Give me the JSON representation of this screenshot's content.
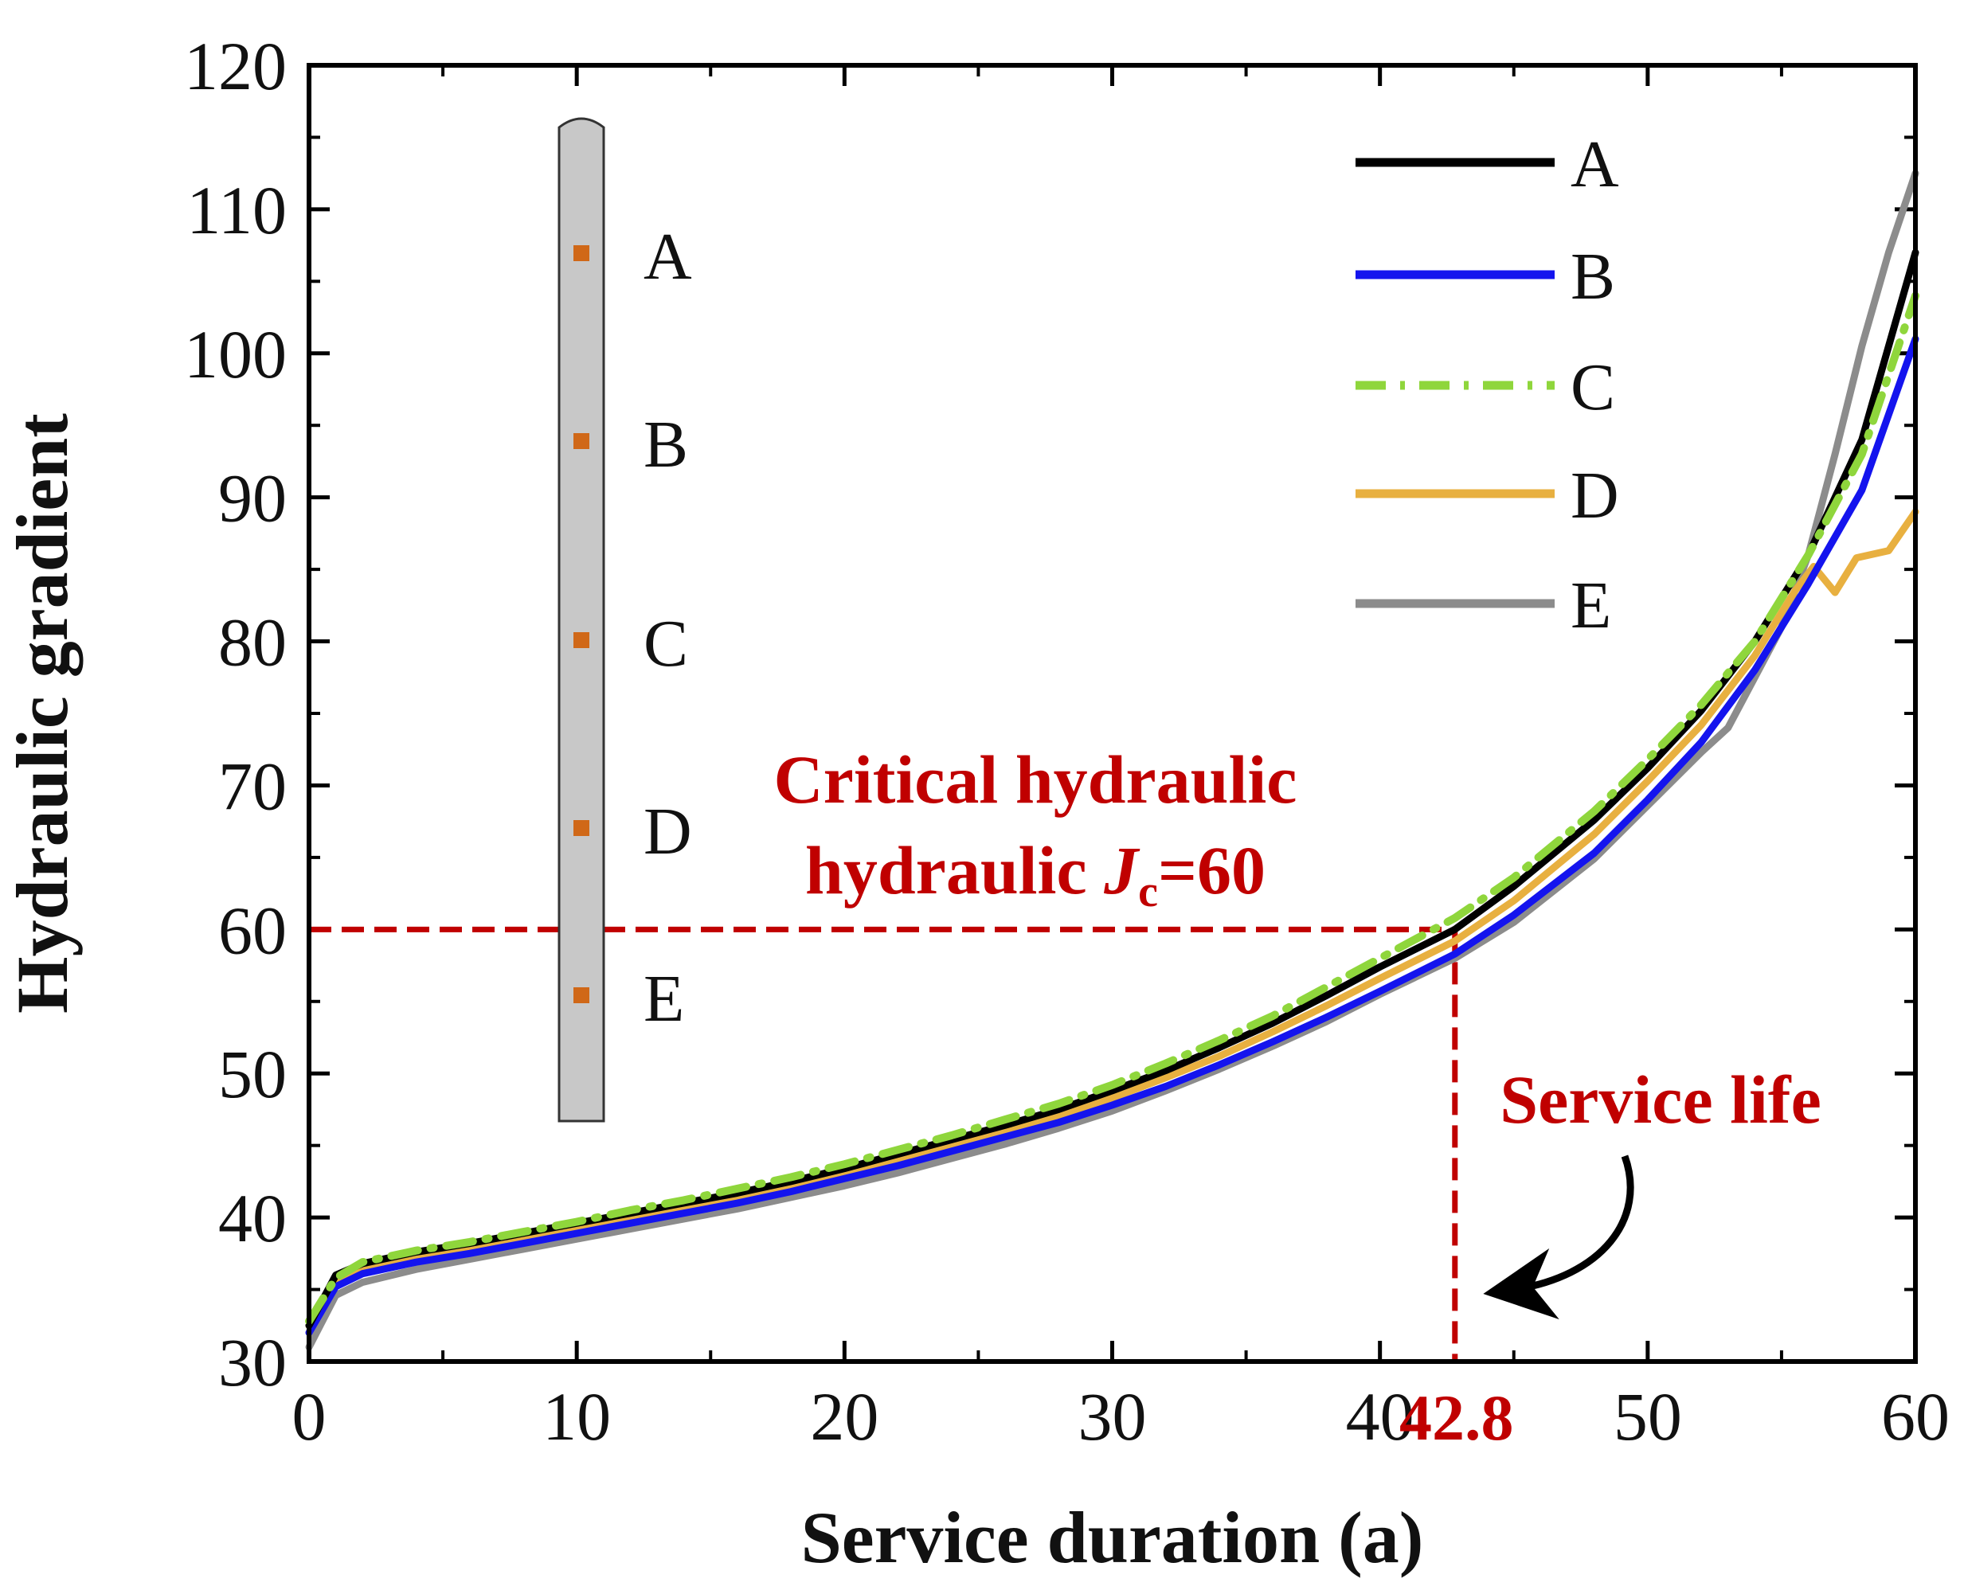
{
  "colors": {
    "A": "#000000",
    "B": "#1414ee",
    "C": "#8fd63c",
    "D": "#e8b040",
    "E": "#8c8c8c",
    "annotation": "#c00000",
    "pile_fill": "#c8c8c8",
    "pile_marker": "#d06818"
  },
  "chart_data": {
    "type": "line",
    "title": "",
    "xlabel": "Service duration (a)",
    "ylabel": "Hydraulic gradient",
    "xlim": [
      0,
      60
    ],
    "ylim": [
      30,
      120
    ],
    "x_ticks": [
      0,
      10,
      20,
      30,
      40,
      50,
      60
    ],
    "y_ticks": [
      30,
      40,
      50,
      60,
      70,
      80,
      90,
      100,
      110,
      120
    ],
    "x_tick_labels": [
      "0",
      "10",
      "20",
      "30",
      "40",
      "50",
      "60"
    ],
    "y_tick_labels": [
      "30",
      "40",
      "50",
      "60",
      "70",
      "80",
      "90",
      "100",
      "110",
      "120"
    ],
    "legend_position": "top-right",
    "series": [
      {
        "name": "A",
        "style": "solid",
        "x": [
          0,
          1,
          2,
          4,
          6,
          8,
          10,
          12,
          14,
          16,
          18,
          20,
          22,
          24,
          26,
          28,
          30,
          32,
          34,
          36,
          38,
          40,
          42.8,
          45,
          48,
          50,
          52,
          54,
          56,
          58,
          60
        ],
        "y": [
          32.5,
          36.0,
          36.8,
          37.6,
          38.2,
          38.9,
          39.6,
          40.3,
          41.0,
          41.7,
          42.5,
          43.4,
          44.4,
          45.4,
          46.4,
          47.5,
          48.8,
          50.2,
          51.8,
          53.5,
          55.4,
          57.4,
          60.0,
          63.0,
          67.6,
          71.2,
          75.2,
          80.0,
          86.0,
          94.0,
          107.0
        ]
      },
      {
        "name": "B",
        "style": "solid",
        "x": [
          0,
          1,
          2,
          4,
          6,
          8,
          10,
          12,
          14,
          16,
          18,
          20,
          22,
          24,
          26,
          28,
          30,
          32,
          34,
          36,
          38,
          40,
          42.8,
          45,
          48,
          50,
          52,
          54,
          56,
          58,
          60
        ],
        "y": [
          32.0,
          35.2,
          36.1,
          36.9,
          37.5,
          38.2,
          38.9,
          39.6,
          40.3,
          41.0,
          41.8,
          42.7,
          43.6,
          44.6,
          45.6,
          46.6,
          47.8,
          49.1,
          50.6,
          52.2,
          53.9,
          55.7,
          58.3,
          61.0,
          65.3,
          69.0,
          73.0,
          78.0,
          84.0,
          90.5,
          101.0
        ]
      },
      {
        "name": "C",
        "style": "dashdot",
        "x": [
          0,
          1,
          2,
          4,
          6,
          8,
          10,
          12,
          14,
          16,
          18,
          20,
          22,
          24,
          26,
          28,
          30,
          32,
          34,
          36,
          38,
          40,
          42.8,
          45,
          48,
          50,
          52,
          54,
          56,
          58,
          60
        ],
        "y": [
          32.8,
          35.8,
          36.9,
          37.7,
          38.3,
          39.0,
          39.7,
          40.5,
          41.2,
          42.0,
          42.8,
          43.7,
          44.7,
          45.7,
          46.8,
          47.9,
          49.2,
          50.7,
          52.3,
          54.0,
          56.0,
          58.0,
          60.8,
          63.6,
          68.2,
          71.8,
          75.6,
          80.0,
          86.0,
          93.0,
          104.0
        ]
      },
      {
        "name": "D",
        "style": "solid",
        "x": [
          0,
          1,
          2,
          4,
          6,
          8,
          10,
          12,
          14,
          16,
          18,
          20,
          22,
          24,
          26,
          28,
          30,
          32,
          34,
          36,
          38,
          40,
          42.8,
          45,
          48,
          50,
          52,
          54,
          55.5,
          56.2,
          57,
          57.8,
          59,
          60
        ],
        "y": [
          32.5,
          35.4,
          36.4,
          37.2,
          37.8,
          38.5,
          39.2,
          39.9,
          40.6,
          41.4,
          42.2,
          43.0,
          44.0,
          45.0,
          46.0,
          47.0,
          48.3,
          49.7,
          51.2,
          52.9,
          54.7,
          56.6,
          59.2,
          62.0,
          66.6,
          70.3,
          74.2,
          79.0,
          83.5,
          85.2,
          83.4,
          85.8,
          86.3,
          89.0
        ]
      },
      {
        "name": "E",
        "style": "solid",
        "x": [
          0,
          1,
          2,
          4,
          6,
          8,
          10,
          12,
          14,
          16,
          18,
          20,
          22,
          24,
          26,
          28,
          30,
          32,
          34,
          36,
          38,
          40,
          42.8,
          45,
          48,
          50,
          52,
          53,
          55,
          56,
          57,
          58,
          59,
          60
        ],
        "y": [
          31.0,
          34.6,
          35.5,
          36.4,
          37.1,
          37.8,
          38.5,
          39.2,
          39.9,
          40.6,
          41.4,
          42.2,
          43.1,
          44.1,
          45.1,
          46.2,
          47.4,
          48.8,
          50.3,
          51.9,
          53.6,
          55.5,
          58.0,
          60.5,
          64.9,
          68.6,
          72.3,
          74.0,
          81.0,
          86.0,
          93.0,
          100.5,
          107.0,
          112.5
        ]
      }
    ],
    "annotations": {
      "critical_line_1": "Critical hydraulic",
      "critical_line_2_prefix": "hydraulic ",
      "critical_symbol": "J",
      "critical_subscript": "c",
      "critical_suffix": "=60",
      "critical_value": 60,
      "service_life_label": "Service life",
      "service_life_value": 42.8,
      "service_life_tick": "42.8"
    },
    "inset": {
      "description": "pile with monitoring points",
      "points": [
        "A",
        "B",
        "C",
        "D",
        "E"
      ]
    }
  }
}
